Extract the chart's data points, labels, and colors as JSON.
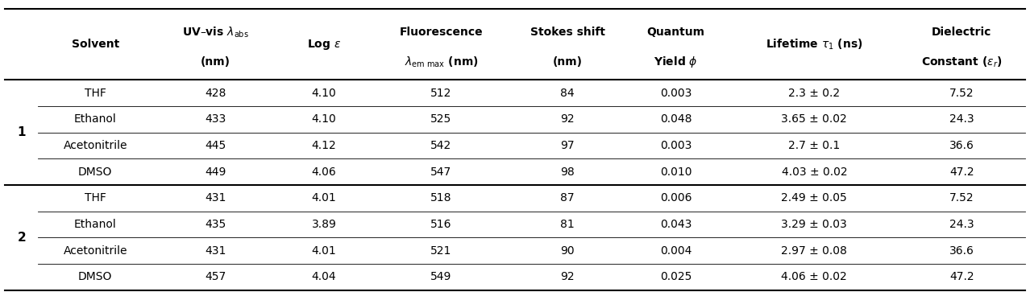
{
  "col_headers": [
    "Solvent",
    "UV–vis λ$_{\\mathbf{abs}}$\n(nm)",
    "Log $\\varepsilon$",
    "Fluorescence\n$\\lambda_{\\mathbf{em\\ max}}$ (nm)",
    "Stokes shift\n(nm)",
    "Quantum\nYield $\\phi$",
    "Lifetime $\\tau_1$ (ns)",
    "Dielectric\nConstant ($\\varepsilon_{\\mathbf{r}}$)"
  ],
  "compound_label": [
    "1",
    "2"
  ],
  "rows": [
    [
      "THF",
      "428",
      "4.10",
      "512",
      "84",
      "0.003",
      "2.3 ± 0.2",
      "7.52"
    ],
    [
      "Ethanol",
      "433",
      "4.10",
      "525",
      "92",
      "0.048",
      "3.65 ± 0.02",
      "24.3"
    ],
    [
      "Acetonitrile",
      "445",
      "4.12",
      "542",
      "97",
      "0.003",
      "2.7 ± 0.1",
      "36.6"
    ],
    [
      "DMSO",
      "449",
      "4.06",
      "547",
      "98",
      "0.010",
      "4.03 ± 0.02",
      "47.2"
    ],
    [
      "THF",
      "431",
      "4.01",
      "518",
      "87",
      "0.006",
      "2.49 ± 0.05",
      "7.52"
    ],
    [
      "Ethanol",
      "435",
      "3.89",
      "516",
      "81",
      "0.043",
      "3.29 ± 0.03",
      "24.3"
    ],
    [
      "Acetonitrile",
      "431",
      "4.01",
      "521",
      "90",
      "0.004",
      "2.97 ± 0.08",
      "36.6"
    ],
    [
      "DMSO",
      "457",
      "4.04",
      "549",
      "92",
      "0.025",
      "4.06 ± 0.02",
      "47.2"
    ]
  ],
  "bg_color": "#ffffff",
  "line_color": "#000000",
  "text_color": "#000000",
  "font_size": 10,
  "header_font_size": 10
}
